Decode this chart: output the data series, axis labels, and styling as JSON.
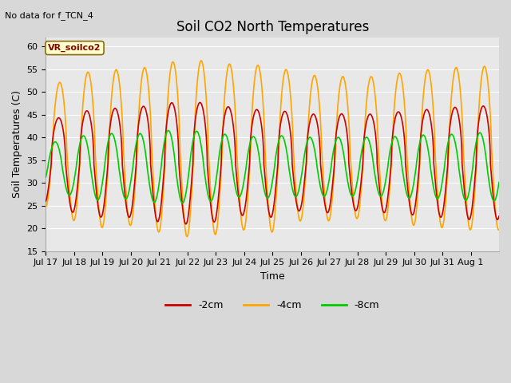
{
  "title": "Soil CO2 North Temperatures",
  "subtitle": "No data for f_TCN_4",
  "ylabel": "Soil Temperatures (C)",
  "xlabel": "Time",
  "ylim": [
    15,
    62
  ],
  "n_days": 16,
  "background_color": "#d8d8d8",
  "plot_bg_color": "#e8e8e8",
  "legend_label": "VR_soilco2",
  "series_colors": {
    "-2cm": "#cc0000",
    "-4cm": "#ffa500",
    "-8cm": "#00cc00"
  },
  "xtick_labels": [
    "Jul 17",
    "Jul 18",
    "Jul 19",
    "Jul 20",
    "Jul 21",
    "Jul 22",
    "Jul 23",
    "Jul 24",
    "Jul 25",
    "Jul 26",
    "Jul 27",
    "Jul 28",
    "Jul 29",
    "Jul 30",
    "Jul 31",
    "Aug 1"
  ],
  "yticks": [
    15,
    20,
    25,
    30,
    35,
    40,
    45,
    50,
    55,
    60
  ],
  "title_fontsize": 12,
  "axis_fontsize": 9,
  "tick_fontsize": 8,
  "linewidth": 1.2,
  "figsize": [
    6.4,
    4.8
  ],
  "dpi": 100
}
